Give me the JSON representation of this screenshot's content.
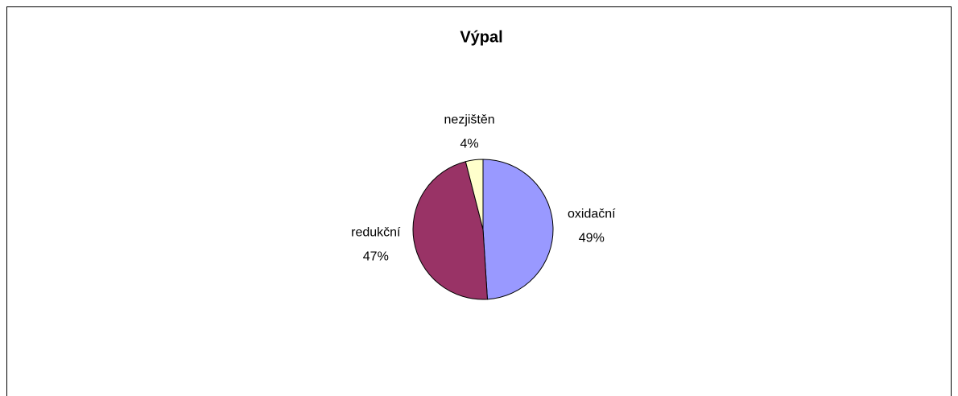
{
  "chart_data": {
    "type": "pie",
    "title": "Výpal",
    "categories": [
      "oxidační",
      "redukční",
      "nezjištěn"
    ],
    "values": [
      49,
      47,
      4
    ],
    "value_labels": [
      "49%",
      "47%",
      "4%"
    ],
    "colors": [
      "#9999ff",
      "#993366",
      "#ffffcc"
    ]
  }
}
